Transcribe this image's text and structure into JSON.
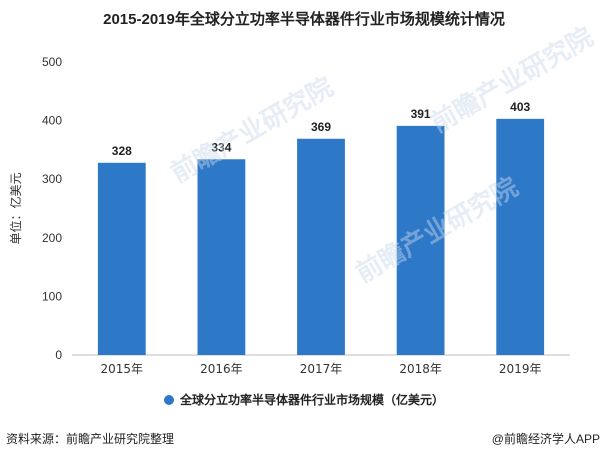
{
  "chart_data": {
    "type": "bar",
    "title": "2015-2019年全球分立功率半导体器件行业市场规模统计情况",
    "ylabel": "单位：亿美元",
    "xlabel": "",
    "categories": [
      "2015年",
      "2016年",
      "2017年",
      "2018年",
      "2019年"
    ],
    "series": [
      {
        "name": "全球分立功率半导体器件行业市场规模（亿美元）",
        "values": [
          328,
          334,
          369,
          391,
          403
        ]
      }
    ],
    "ylim": [
      0,
      500
    ],
    "yticks": [
      0,
      100,
      200,
      300,
      400,
      500
    ],
    "grid": false,
    "legend_position": "bottom"
  },
  "colors": {
    "bar": "#2E78C8",
    "axis": "#bfbfbf",
    "text": "#333333"
  },
  "footer": {
    "source": "资料来源：前瞻产业研究院整理",
    "brand": "@前瞻经济学人APP"
  },
  "watermark": {
    "text": "前瞻产业研究院"
  }
}
